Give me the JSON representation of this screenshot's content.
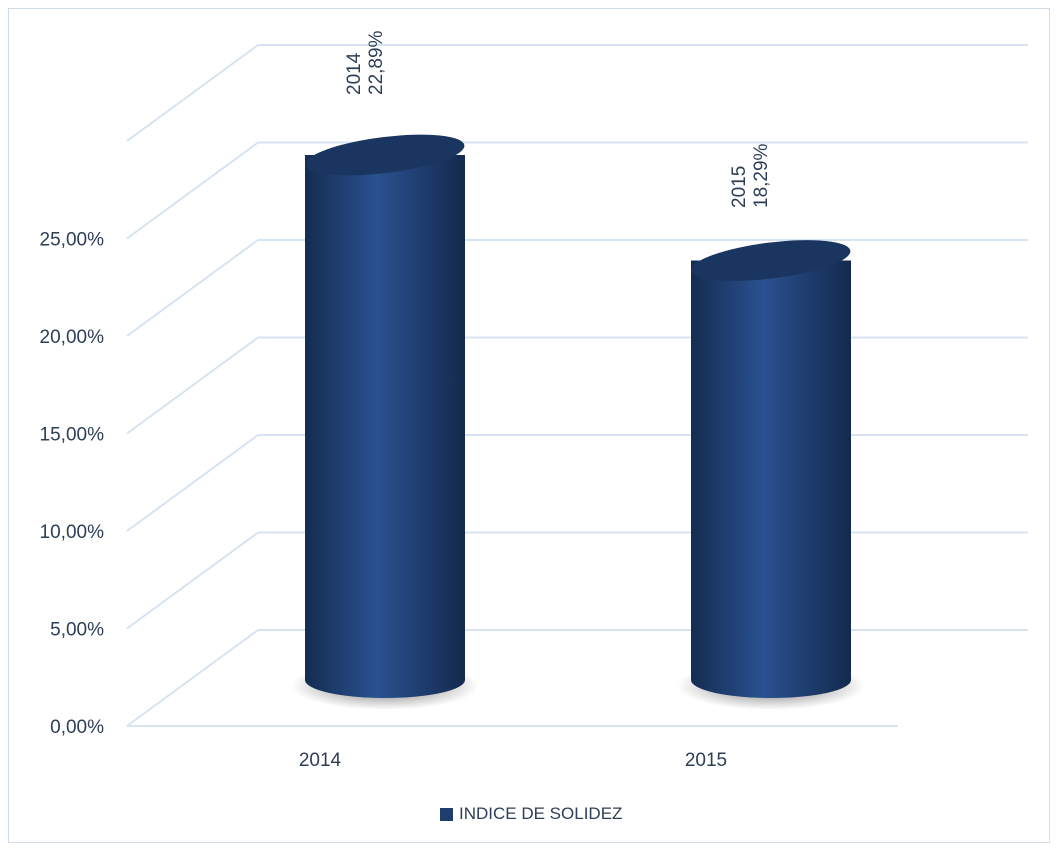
{
  "chart_data": {
    "type": "bar",
    "categories": [
      "2014",
      "2015"
    ],
    "series": [
      {
        "name": "INDICE DE SOLIDEZ",
        "values": [
          22.89,
          18.29
        ],
        "data_labels": [
          "22,89%",
          "18,29%"
        ]
      }
    ],
    "ylim": [
      0,
      30
    ],
    "yticks": [
      0,
      5,
      10,
      15,
      20,
      25
    ],
    "ytick_labels": [
      "0,00%",
      "5,00%",
      "10,00%",
      "15,00%",
      "20,00%",
      "25,00%"
    ],
    "grid": true,
    "legend_position": "bottom",
    "bar_color": "#1f3e6e",
    "gridline_color": "#d7e3f1"
  }
}
